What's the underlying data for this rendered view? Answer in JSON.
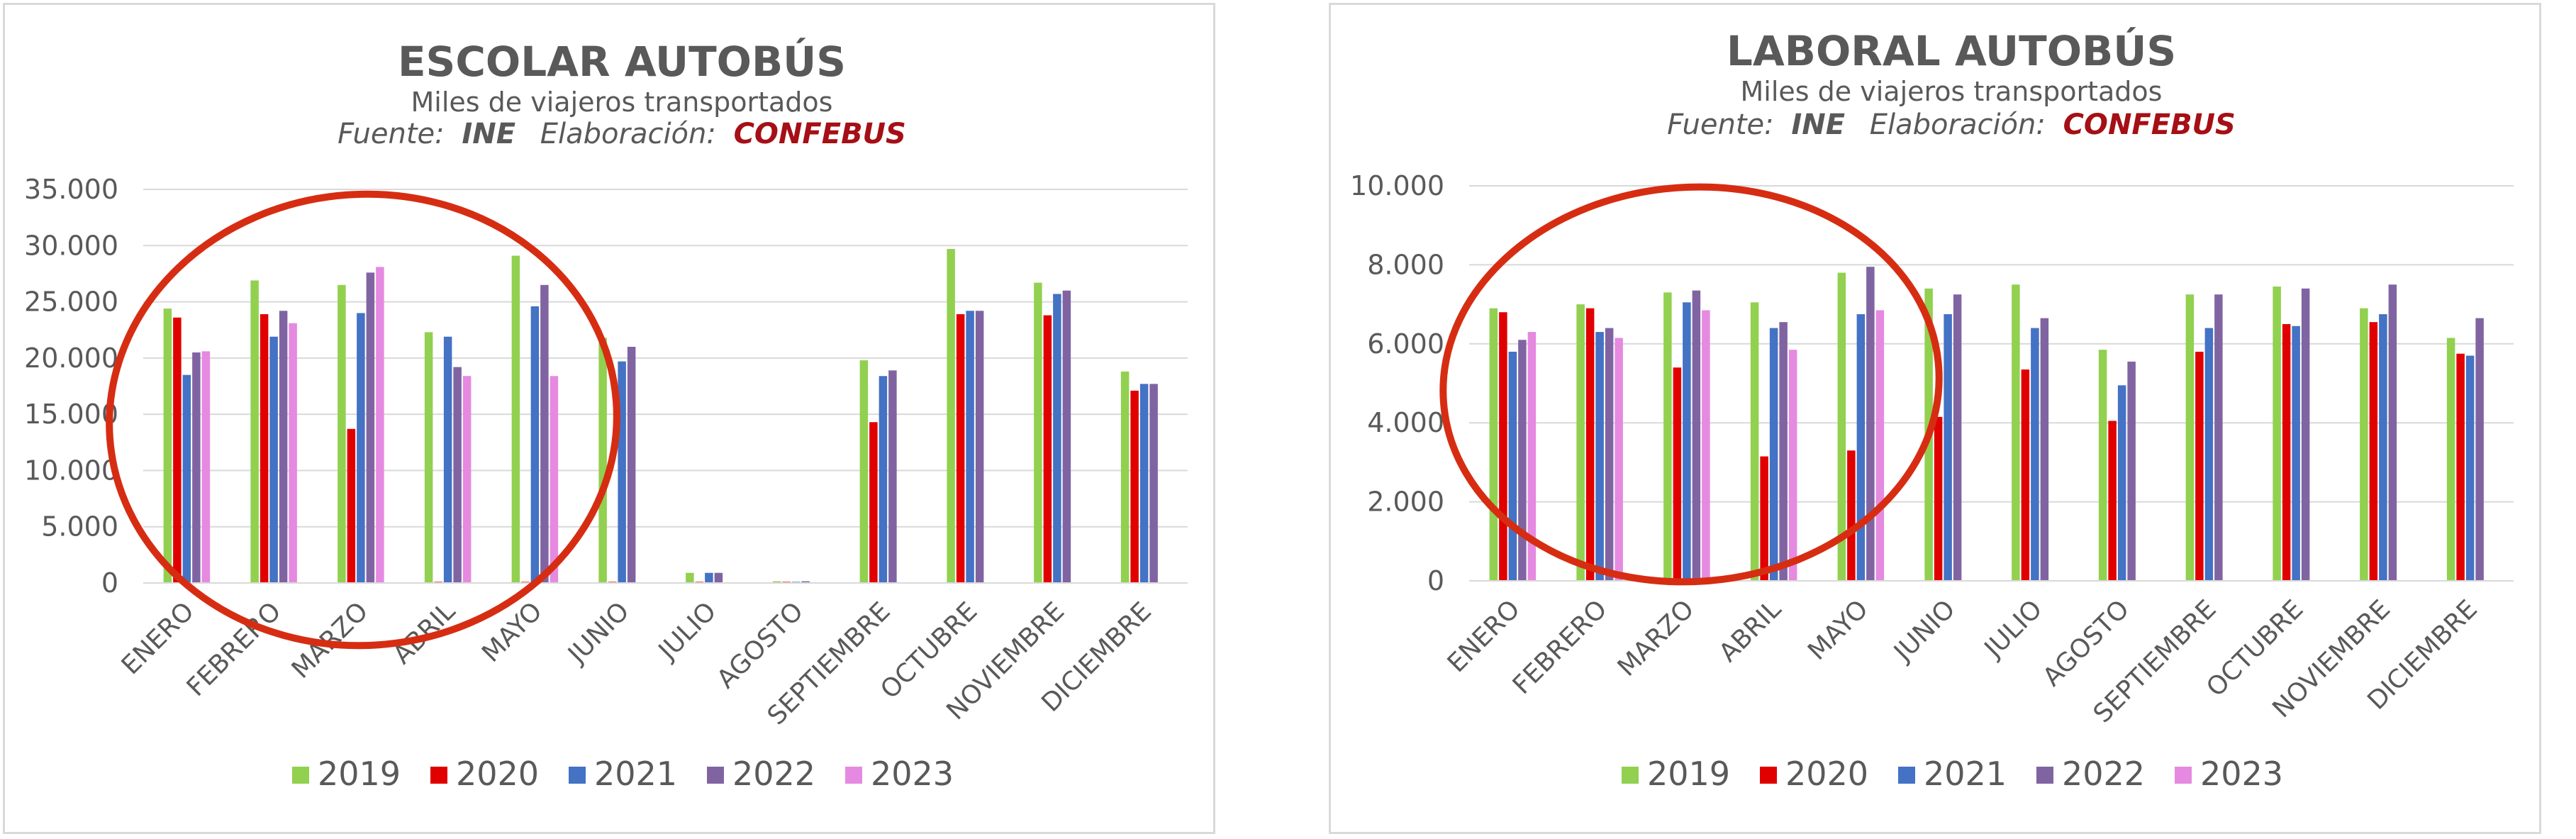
{
  "chart_data": [
    {
      "type": "bar",
      "title": "ESCOLAR AUTOBÚS",
      "subtitle": "Miles de viajeros transportados",
      "source": {
        "prefix": "Fuente:",
        "source_name": "INE",
        "elab": "Elaboración:",
        "elab_name": "CONFEBUS"
      },
      "categories": [
        "ENERO",
        "FEBRERO",
        "MARZO",
        "ABRIL",
        "MAYO",
        "JUNIO",
        "JULIO",
        "AGOSTO",
        "SEPTIEMBRE",
        "OCTUBRE",
        "NOVIEMBRE",
        "DICIEMBRE"
      ],
      "ylim": [
        0,
        35000
      ],
      "yticks": [
        0,
        5000,
        10000,
        15000,
        20000,
        25000,
        30000,
        35000
      ],
      "ytick_labels": [
        "0",
        "5.000",
        "10.000",
        "15.000",
        "20.000",
        "25.000",
        "30.000",
        "35.000"
      ],
      "grid": true,
      "legend_position": "bottom",
      "series": [
        {
          "name": "2019",
          "color": "#92d050",
          "values": [
            24400,
            26900,
            26500,
            22300,
            29100,
            21800,
            900,
            150,
            19800,
            29700,
            26700,
            18800
          ]
        },
        {
          "name": "2020",
          "color": "#e00000",
          "values": [
            23600,
            23900,
            13700,
            100,
            100,
            100,
            100,
            100,
            14300,
            23900,
            23800,
            17100
          ]
        },
        {
          "name": "2021",
          "color": "#4472c4",
          "values": [
            18500,
            21900,
            24000,
            21900,
            24600,
            19700,
            900,
            100,
            18400,
            24200,
            25700,
            17700
          ]
        },
        {
          "name": "2022",
          "color": "#8064a2",
          "values": [
            20500,
            24200,
            27600,
            19200,
            26500,
            21000,
            900,
            150,
            18900,
            24200,
            26000,
            17700
          ]
        },
        {
          "name": "2023",
          "color": "#e58ae0",
          "values": [
            20600,
            23100,
            28100,
            18400,
            18400,
            null,
            null,
            null,
            null,
            null,
            null,
            null
          ]
        }
      ]
    },
    {
      "type": "bar",
      "title": "LABORAL AUTOBÚS",
      "subtitle": "Miles de viajeros transportados",
      "source": {
        "prefix": "Fuente:",
        "source_name": "INE",
        "elab": "Elaboración:",
        "elab_name": "CONFEBUS"
      },
      "categories": [
        "ENERO",
        "FEBRERO",
        "MARZO",
        "ABRIL",
        "MAYO",
        "JUNIO",
        "JULIO",
        "AGOSTO",
        "SEPTIEMBRE",
        "OCTUBRE",
        "NOVIEMBRE",
        "DICIEMBRE"
      ],
      "ylim": [
        0,
        10000
      ],
      "yticks": [
        0,
        2000,
        4000,
        6000,
        8000,
        10000
      ],
      "ytick_labels": [
        "0",
        "2.000",
        "4.000",
        "6.000",
        "8.000",
        "10.000"
      ],
      "grid": true,
      "legend_position": "bottom",
      "series": [
        {
          "name": "2019",
          "color": "#92d050",
          "values": [
            6900,
            7000,
            7300,
            7050,
            7800,
            7400,
            7500,
            5850,
            7250,
            7450,
            6900,
            6150
          ]
        },
        {
          "name": "2020",
          "color": "#e00000",
          "values": [
            6800,
            6900,
            5400,
            3150,
            3300,
            4150,
            5350,
            4050,
            5800,
            6500,
            6550,
            5750
          ]
        },
        {
          "name": "2021",
          "color": "#4472c4",
          "values": [
            5800,
            6300,
            7050,
            6400,
            6750,
            6750,
            6400,
            4950,
            6400,
            6450,
            6750,
            5700
          ]
        },
        {
          "name": "2022",
          "color": "#8064a2",
          "values": [
            6100,
            6400,
            7350,
            6550,
            7950,
            7250,
            6650,
            5550,
            7250,
            7400,
            7500,
            6650
          ]
        },
        {
          "name": "2023",
          "color": "#e58ae0",
          "values": [
            6300,
            6150,
            6850,
            5850,
            6850,
            null,
            null,
            null,
            null,
            null,
            null,
            null
          ]
        }
      ]
    }
  ]
}
